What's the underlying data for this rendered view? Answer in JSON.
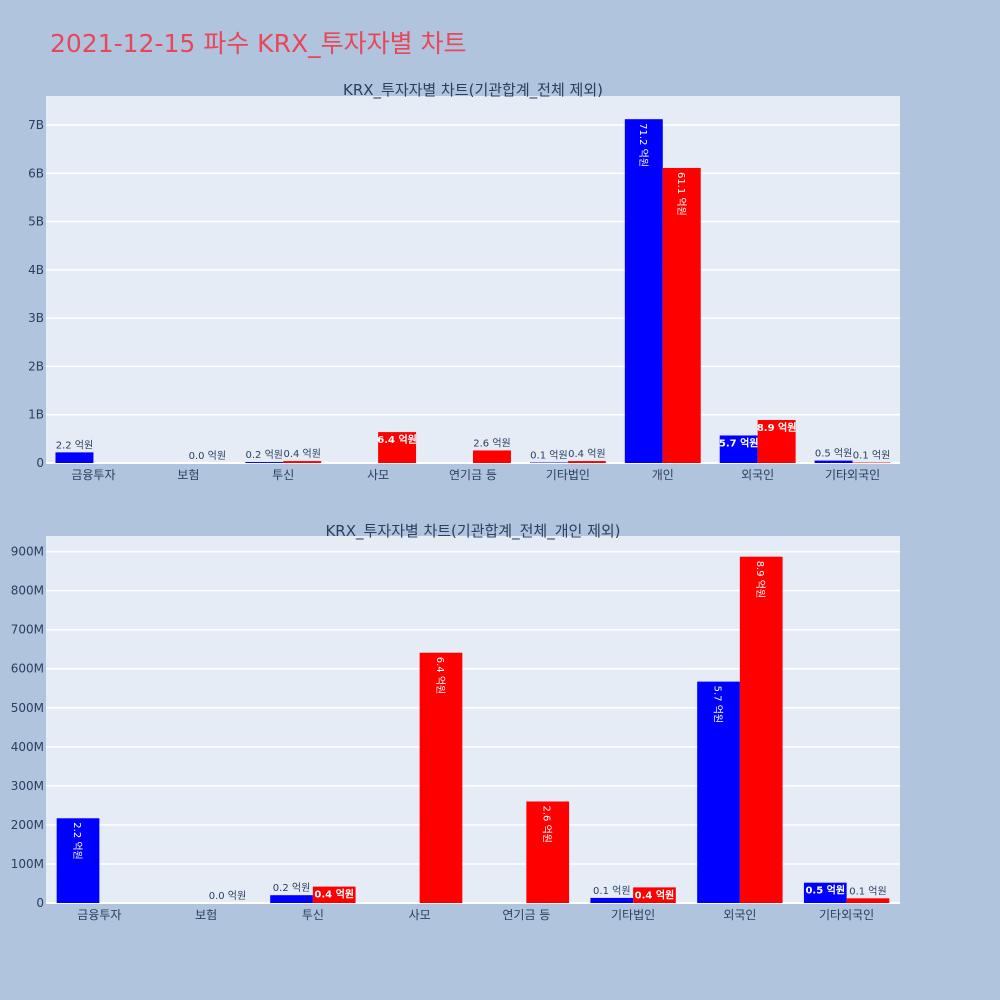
{
  "page_title": "2021-12-15 파수 KRX_투자자별 차트",
  "colors": {
    "background": "#b0c4de",
    "plot_background": "#e5ecf6",
    "series_a": "#0000ff",
    "series_b": "#ff0000",
    "title": "#e8475a"
  },
  "chart_data": [
    {
      "type": "bar",
      "title": "KRX_투자자별 차트(기관합계_전체 제외)",
      "categories": [
        "금융투자",
        "보험",
        "투신",
        "사모",
        "연기금 등",
        "기타법인",
        "개인",
        "외국인",
        "기타외국인"
      ],
      "ylim": [
        0,
        7600000000
      ],
      "yticks": [
        0,
        1000000000,
        2000000000,
        3000000000,
        4000000000,
        5000000000,
        6000000000,
        7000000000
      ],
      "ytick_labels": [
        "0",
        "1B",
        "2B",
        "3B",
        "4B",
        "5B",
        "6B",
        "7B"
      ],
      "grid": true,
      "series": [
        {
          "values": [
            220000000,
            0,
            20000000,
            0,
            0,
            10000000,
            7120000000,
            570000000,
            50000000
          ],
          "labels": [
            "2.2 억원",
            "",
            "0.2 억원",
            "",
            "",
            "0.1 억원",
            "71.2 억원",
            "5.7 억원",
            "0.5 억원"
          ]
        },
        {
          "values": [
            0,
            0,
            40000000,
            640000000,
            260000000,
            40000000,
            6110000000,
            890000000,
            10000000
          ],
          "labels": [
            "",
            "0.0 억원",
            "0.4 억원",
            "6.4 억원",
            "2.6 억원",
            "0.4 억원",
            "61.1 억원",
            "8.9 억원",
            "0.1 억원"
          ]
        }
      ]
    },
    {
      "type": "bar",
      "title": "KRX_투자자별 차트(기관합계_전체_개인 제외)",
      "categories": [
        "금융투자",
        "보험",
        "투신",
        "사모",
        "연기금 등",
        "기타법인",
        "외국인",
        "기타외국인"
      ],
      "ylim": [
        0,
        940000000
      ],
      "yticks": [
        0,
        100000000,
        200000000,
        300000000,
        400000000,
        500000000,
        600000000,
        700000000,
        800000000,
        900000000
      ],
      "ytick_labels": [
        "0",
        "100M",
        "200M",
        "300M",
        "400M",
        "500M",
        "600M",
        "700M",
        "800M",
        "900M"
      ],
      "grid": true,
      "series": [
        {
          "values": [
            217000000,
            0,
            20000000,
            0,
            0,
            13000000,
            567000000,
            52000000
          ],
          "labels": [
            "2.2 억원",
            "",
            "0.2 억원",
            "",
            "",
            "0.1 억원",
            "5.7 억원",
            "0.5 억원"
          ]
        },
        {
          "values": [
            0,
            0,
            42000000,
            641000000,
            260000000,
            40000000,
            887000000,
            12000000
          ],
          "labels": [
            "",
            "0.0 억원",
            "0.4 억원",
            "6.4 억원",
            "2.6 억원",
            "0.4 억원",
            "8.9 억원",
            "0.1 억원"
          ]
        }
      ]
    }
  ]
}
